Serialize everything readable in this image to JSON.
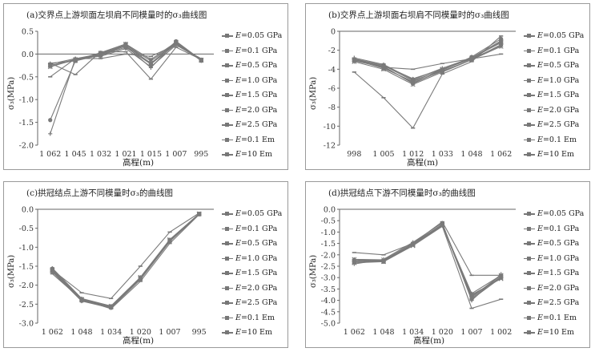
{
  "chart_data": [
    {
      "type": "line",
      "title": "(a)交界点上游坝面左坝肩不同模量时的σ₃曲线图",
      "xlabel": "高程(m)",
      "ylabel": "σ₃(MPa)",
      "categories": [
        "1 062",
        "1 045",
        "1 032",
        "1 021",
        "1 015",
        "1 007",
        "995"
      ],
      "ylim": [
        -2.0,
        0.5
      ],
      "yticks": [
        "0.5",
        "0.0",
        "-0.5",
        "-1.0",
        "-1.5",
        "-2.0"
      ],
      "ytick_values": [
        0.5,
        0.0,
        -0.5,
        -1.0,
        -1.5,
        -2.0
      ],
      "series": [
        {
          "name": "E=0.05 GPa",
          "values": [
            -0.22,
            -0.1,
            -0.05,
            0.12,
            -0.28,
            0.2,
            -0.12
          ]
        },
        {
          "name": "E=0.1 GPa",
          "values": [
            -0.25,
            -0.12,
            -0.03,
            0.15,
            -0.22,
            0.22,
            -0.13
          ]
        },
        {
          "name": "E=0.5 GPa",
          "values": [
            -0.2,
            -0.15,
            -0.02,
            0.18,
            -0.2,
            0.25,
            -0.14
          ]
        },
        {
          "name": "E=1.0 GPa",
          "values": [
            -0.25,
            -0.14,
            0.0,
            0.2,
            -0.15,
            0.24,
            -0.13
          ]
        },
        {
          "name": "E=1.5 GPa",
          "values": [
            -0.28,
            -0.12,
            0.02,
            0.22,
            -0.12,
            0.26,
            -0.14
          ]
        },
        {
          "name": "E=2.0 GPa",
          "values": [
            -1.45,
            -0.15,
            0.03,
            0.22,
            -0.22,
            0.28,
            -0.13
          ]
        },
        {
          "name": "E=2.5 GPa",
          "values": [
            -1.75,
            -0.1,
            0.0,
            0.18,
            -0.3,
            0.27,
            -0.15
          ]
        },
        {
          "name": "E=0.1 Em",
          "values": [
            -0.2,
            -0.45,
            0.05,
            0.05,
            -0.55,
            0.15,
            -0.12
          ]
        },
        {
          "name": "E=10 Em",
          "values": [
            -0.5,
            -0.1,
            -0.1,
            0.0,
            -0.05,
            0.2,
            -0.1
          ]
        }
      ]
    },
    {
      "type": "line",
      "title": "(b)交界点上游坝面右坝肩不同模量时的σ₃曲线图",
      "xlabel": "高程(m)",
      "ylabel": "σ₃(MPa)",
      "categories": [
        "998",
        "1 005",
        "1 012",
        "1 033",
        "1 048",
        "1 062"
      ],
      "ylim": [
        -12,
        0
      ],
      "yticks": [
        "0",
        "-2",
        "-4",
        "-6",
        "-8",
        "-10",
        "-12"
      ],
      "ytick_values": [
        0,
        -2,
        -4,
        -6,
        -8,
        -10,
        -12
      ],
      "series": [
        {
          "name": "E=0.05 GPa",
          "values": [
            -2.9,
            -3.6,
            -5.0,
            -4.0,
            -2.9,
            -1.5
          ]
        },
        {
          "name": "E=0.1 GPa",
          "values": [
            -3.0,
            -3.6,
            -5.2,
            -4.1,
            -2.8,
            -1.2
          ]
        },
        {
          "name": "E=0.5 GPa",
          "values": [
            -3.1,
            -3.8,
            -5.4,
            -4.2,
            -3.0,
            -1.4
          ]
        },
        {
          "name": "E=1.0 GPa",
          "values": [
            -3.0,
            -3.9,
            -5.3,
            -4.0,
            -2.9,
            -1.1
          ]
        },
        {
          "name": "E=1.5 GPa",
          "values": [
            -3.2,
            -4.0,
            -5.6,
            -4.3,
            -3.0,
            -1.6
          ]
        },
        {
          "name": "E=2.0 GPa",
          "values": [
            -3.0,
            -3.7,
            -5.5,
            -4.1,
            -2.7,
            -0.8
          ]
        },
        {
          "name": "E=2.5 GPa",
          "values": [
            -2.8,
            -3.5,
            -5.1,
            -3.9,
            -2.8,
            -1.0
          ]
        },
        {
          "name": "E=0.1 Em",
          "values": [
            -4.3,
            -7.0,
            -10.2,
            -4.5,
            -3.2,
            -0.5
          ]
        },
        {
          "name": "E=10 Em",
          "values": [
            -2.9,
            -3.8,
            -4.0,
            -3.4,
            -2.9,
            -2.4
          ]
        }
      ]
    },
    {
      "type": "line",
      "title": "(c)拱冠结点上游不同模量时σ₃的曲线图",
      "xlabel": "高程(m)",
      "ylabel": "σ₃(MPa)",
      "categories": [
        "1 062",
        "1 048",
        "1 034",
        "1 020",
        "1 007",
        "995"
      ],
      "ylim": [
        -3.0,
        0.0
      ],
      "yticks": [
        "0.0",
        "-0.5",
        "-1.0",
        "-1.5",
        "-2.0",
        "-2.5",
        "-3.0"
      ],
      "ytick_values": [
        0.0,
        -0.5,
        -1.0,
        -1.5,
        -2.0,
        -2.5,
        -3.0
      ],
      "series": [
        {
          "name": "E=0.05 GPa",
          "values": [
            -1.55,
            -2.35,
            -2.55,
            -1.8,
            -0.8,
            -0.12
          ]
        },
        {
          "name": "E=0.1 GPa",
          "values": [
            -1.58,
            -2.38,
            -2.57,
            -1.82,
            -0.82,
            -0.12
          ]
        },
        {
          "name": "E=0.5 GPa",
          "values": [
            -1.6,
            -2.4,
            -2.58,
            -1.83,
            -0.83,
            -0.13
          ]
        },
        {
          "name": "E=1.0 GPa",
          "values": [
            -1.62,
            -2.38,
            -2.56,
            -1.81,
            -0.81,
            -0.12
          ]
        },
        {
          "name": "E=1.5 GPa",
          "values": [
            -1.6,
            -2.37,
            -2.55,
            -1.79,
            -0.8,
            -0.12
          ]
        },
        {
          "name": "E=2.0 GPa",
          "values": [
            -1.63,
            -2.41,
            -2.59,
            -1.84,
            -0.84,
            -0.13
          ]
        },
        {
          "name": "E=2.5 GPa",
          "values": [
            -1.65,
            -2.42,
            -2.6,
            -1.85,
            -0.85,
            -0.13
          ]
        },
        {
          "name": "E=0.1 Em",
          "values": [
            -1.6,
            -2.2,
            -2.35,
            -1.5,
            -0.6,
            -0.1
          ]
        },
        {
          "name": "E=10 Em",
          "values": [
            -1.7,
            -2.38,
            -2.62,
            -1.9,
            -0.9,
            -0.14
          ]
        }
      ]
    },
    {
      "type": "line",
      "title": "(d)拱冠结点下游不同模量时σ₃的曲线图",
      "xlabel": "高程(m)",
      "ylabel": "σ₃(MPa)",
      "categories": [
        "1 062",
        "1 048",
        "1 034",
        "1 020",
        "1 007",
        "1 002"
      ],
      "ylim": [
        -5.0,
        0.0
      ],
      "yticks": [
        "0.0",
        "-0.5",
        "-1.0",
        "-1.5",
        "-2.0",
        "-2.5",
        "-3.0",
        "-3.5",
        "-4.0",
        "-4.5",
        "-5.0"
      ],
      "ytick_values": [
        0.0,
        -0.5,
        -1.0,
        -1.5,
        -2.0,
        -2.5,
        -3.0,
        -3.5,
        -4.0,
        -4.5,
        -5.0
      ],
      "series": [
        {
          "name": "E=0.05 GPa",
          "values": [
            -2.2,
            -2.25,
            -1.5,
            -0.7,
            -3.7,
            -2.9
          ]
        },
        {
          "name": "E=0.1 GPa",
          "values": [
            -2.3,
            -2.3,
            -1.55,
            -0.65,
            -3.8,
            -3.0
          ]
        },
        {
          "name": "E=0.5 GPa",
          "values": [
            -2.25,
            -2.28,
            -1.52,
            -0.68,
            -3.9,
            -2.95
          ]
        },
        {
          "name": "E=1.0 GPa",
          "values": [
            -2.35,
            -2.3,
            -1.6,
            -0.7,
            -3.75,
            -3.05
          ]
        },
        {
          "name": "E=1.5 GPa",
          "values": [
            -2.2,
            -2.22,
            -1.55,
            -0.72,
            -3.85,
            -2.9
          ]
        },
        {
          "name": "E=2.0 GPa",
          "values": [
            -2.3,
            -2.25,
            -1.5,
            -0.66,
            -3.95,
            -3.0
          ]
        },
        {
          "name": "E=2.5 GPa",
          "values": [
            -2.4,
            -2.2,
            -1.45,
            -0.6,
            -4.0,
            -2.85
          ]
        },
        {
          "name": "E=0.1 Em",
          "values": [
            -1.9,
            -2.0,
            -1.5,
            -0.55,
            -2.9,
            -2.9
          ]
        },
        {
          "name": "E=10 Em",
          "values": [
            -2.2,
            -2.3,
            -1.6,
            -0.75,
            -4.35,
            -3.95
          ]
        }
      ]
    }
  ],
  "legend": [
    {
      "label": "E=0.05 GPa",
      "prefix": "E",
      "rest": "=0.05 GPa"
    },
    {
      "label": "E=0.1 GPa",
      "prefix": "E",
      "rest": "=0.1 GPa"
    },
    {
      "label": "E=0.5 GPa",
      "prefix": "E",
      "rest": "=0.5 GPa"
    },
    {
      "label": "E=1.0 GPa",
      "prefix": "E",
      "rest": "=1.0 GPa"
    },
    {
      "label": "E=1.5 GPa",
      "prefix": "E",
      "rest": "=1.5 GPa"
    },
    {
      "label": "E=2.0 GPa",
      "prefix": "E",
      "rest": "=2.0 GPa"
    },
    {
      "label": "E=2.5 GPa",
      "prefix": "E",
      "rest": "=2.5 GPa"
    },
    {
      "label": "E=0.1 Em",
      "prefix": "E",
      "rest": "=0.1 Em"
    },
    {
      "label": "E=10 Em",
      "prefix": "E",
      "rest": "=10 Em"
    }
  ],
  "colors": {
    "line": "#7a7a7a",
    "axis": "#666666",
    "grid": "#d8d8d8",
    "panel_border": "#9a9a9a"
  },
  "markers": [
    "diamond",
    "square",
    "triangle",
    "x",
    "star",
    "circle",
    "plus",
    "dash",
    "dash"
  ]
}
